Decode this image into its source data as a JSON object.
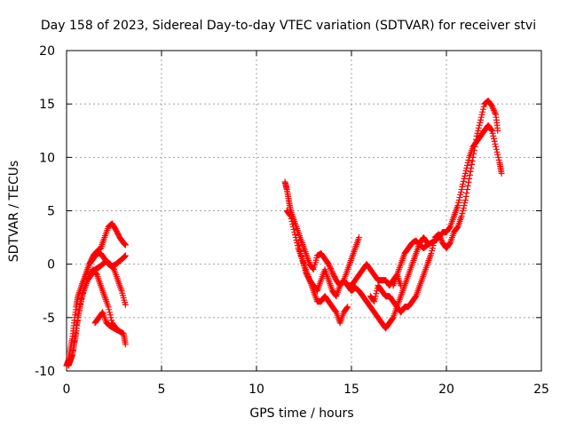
{
  "chart_data": {
    "type": "scatter",
    "title": "Day 158 of 2023, Sidereal Day-to-day VTEC variation (SDTVAR) for receiver stvi",
    "xlabel": "GPS time / hours",
    "ylabel": "SDTVAR / TECUs",
    "xlim": [
      0,
      25
    ],
    "ylim": [
      -10,
      20
    ],
    "xticks": [
      "0",
      "5",
      "10",
      "15",
      "20",
      "25"
    ],
    "yticks": [
      "-10",
      "-5",
      "0",
      "5",
      "10",
      "15",
      "20"
    ],
    "grid": true,
    "legend": "none",
    "marker": "+",
    "color": "#ff0000",
    "series": [
      {
        "values": [
          [
            0.0,
            -9.5
          ],
          [
            0.1,
            -9.0
          ],
          [
            0.2,
            -8.0
          ],
          [
            0.3,
            -7.0
          ],
          [
            0.4,
            -5.5
          ],
          [
            0.5,
            -4.0
          ],
          [
            0.6,
            -3.0
          ],
          [
            0.8,
            -2.0
          ],
          [
            1.0,
            -1.0
          ],
          [
            1.2,
            0.0
          ],
          [
            1.4,
            0.8
          ],
          [
            1.6,
            1.2
          ],
          [
            1.8,
            1.5
          ],
          [
            2.0,
            2.5
          ],
          [
            2.2,
            3.5
          ],
          [
            2.4,
            3.8
          ],
          [
            2.6,
            3.2
          ],
          [
            2.8,
            2.5
          ],
          [
            3.0,
            2.0
          ],
          [
            3.1,
            1.8
          ]
        ]
      },
      {
        "values": [
          [
            0.1,
            -9.5
          ],
          [
            0.2,
            -9.0
          ],
          [
            0.3,
            -8.5
          ],
          [
            0.4,
            -7.5
          ],
          [
            0.5,
            -6.5
          ],
          [
            0.6,
            -5.0
          ],
          [
            0.7,
            -4.0
          ],
          [
            0.8,
            -3.0
          ],
          [
            1.0,
            -2.0
          ],
          [
            1.2,
            -1.0
          ],
          [
            1.4,
            -0.5
          ],
          [
            1.6,
            -1.0
          ],
          [
            1.8,
            -2.0
          ],
          [
            2.0,
            -3.0
          ],
          [
            2.2,
            -4.0
          ],
          [
            2.4,
            -5.5
          ],
          [
            2.6,
            -6.0
          ],
          [
            2.8,
            -6.3
          ],
          [
            3.0,
            -6.5
          ],
          [
            3.1,
            -7.5
          ]
        ]
      },
      {
        "values": [
          [
            0.3,
            -8.5
          ],
          [
            0.5,
            -6.0
          ],
          [
            0.7,
            -4.0
          ],
          [
            0.9,
            -2.5
          ],
          [
            1.1,
            -1.5
          ],
          [
            1.3,
            -1.0
          ],
          [
            1.5,
            -0.5
          ],
          [
            1.7,
            -0.3
          ],
          [
            1.9,
            0.0
          ],
          [
            2.1,
            0.3
          ],
          [
            2.3,
            0.0
          ],
          [
            2.5,
            -0.5
          ],
          [
            2.7,
            -1.5
          ],
          [
            2.9,
            -2.5
          ],
          [
            3.1,
            -3.8
          ]
        ]
      },
      {
        "values": [
          [
            0.8,
            -2.0
          ],
          [
            1.0,
            -1.0
          ],
          [
            1.2,
            0.0
          ],
          [
            1.4,
            0.5
          ],
          [
            1.6,
            1.0
          ],
          [
            1.8,
            1.0
          ],
          [
            2.0,
            0.5
          ],
          [
            2.2,
            0.0
          ],
          [
            2.4,
            -0.2
          ],
          [
            2.6,
            0.0
          ],
          [
            2.8,
            0.3
          ],
          [
            3.0,
            0.6
          ],
          [
            3.1,
            0.8
          ]
        ]
      },
      {
        "values": [
          [
            1.5,
            -5.5
          ],
          [
            1.7,
            -5.0
          ],
          [
            1.9,
            -4.5
          ],
          [
            2.1,
            -5.5
          ],
          [
            2.3,
            -5.8
          ],
          [
            2.5,
            -6.0
          ],
          [
            2.7,
            -6.2
          ]
        ]
      },
      {
        "values": [
          [
            11.5,
            7.7
          ],
          [
            11.6,
            7.0
          ],
          [
            11.7,
            6.0
          ],
          [
            11.8,
            5.0
          ],
          [
            12.0,
            4.0
          ],
          [
            12.2,
            3.0
          ],
          [
            12.4,
            2.0
          ],
          [
            12.6,
            1.0
          ],
          [
            12.8,
            0.0
          ],
          [
            13.0,
            -0.5
          ],
          [
            13.2,
            0.8
          ],
          [
            13.4,
            1.0
          ],
          [
            13.6,
            0.5
          ],
          [
            13.8,
            0.0
          ],
          [
            14.0,
            -0.8
          ],
          [
            14.2,
            -1.5
          ],
          [
            14.4,
            -2.0
          ],
          [
            14.6,
            -1.5
          ],
          [
            14.8,
            -0.5
          ],
          [
            15.0,
            0.5
          ],
          [
            15.2,
            1.5
          ],
          [
            15.4,
            2.5
          ]
        ]
      },
      {
        "values": [
          [
            11.6,
            5.0
          ],
          [
            11.8,
            4.5
          ],
          [
            12.0,
            3.0
          ],
          [
            12.2,
            1.5
          ],
          [
            12.4,
            0.5
          ],
          [
            12.6,
            -0.5
          ],
          [
            12.8,
            -1.5
          ],
          [
            13.0,
            -2.5
          ],
          [
            13.2,
            -3.5
          ],
          [
            13.4,
            -3.5
          ],
          [
            13.6,
            -3.0
          ],
          [
            13.8,
            -3.5
          ],
          [
            14.0,
            -4.0
          ],
          [
            14.2,
            -4.5
          ],
          [
            14.4,
            -5.5
          ],
          [
            14.6,
            -4.5
          ],
          [
            14.8,
            -4.0
          ]
        ]
      },
      {
        "values": [
          [
            12.2,
            2.0
          ],
          [
            12.4,
            0.5
          ],
          [
            12.6,
            -0.8
          ],
          [
            12.8,
            -1.5
          ],
          [
            13.0,
            -2.0
          ],
          [
            13.2,
            -2.5
          ],
          [
            13.4,
            -1.5
          ],
          [
            13.6,
            -0.5
          ],
          [
            13.8,
            -1.5
          ],
          [
            14.0,
            -2.5
          ],
          [
            14.2,
            -3.0
          ],
          [
            14.4,
            -2.0
          ],
          [
            14.6,
            -1.5
          ],
          [
            14.8,
            -2.0
          ],
          [
            15.0,
            -2.0
          ],
          [
            15.2,
            -1.5
          ],
          [
            15.4,
            -1.0
          ],
          [
            15.6,
            -0.5
          ],
          [
            15.8,
            0.0
          ],
          [
            16.0,
            -0.5
          ],
          [
            16.2,
            -1.0
          ],
          [
            16.4,
            -1.5
          ],
          [
            16.6,
            -1.5
          ],
          [
            16.8,
            -1.5
          ],
          [
            17.0,
            -2.0
          ],
          [
            17.2,
            -1.5
          ],
          [
            17.4,
            -1.0
          ],
          [
            17.6,
            -2.0
          ]
        ]
      },
      {
        "values": [
          [
            14.8,
            -2.0
          ],
          [
            15.0,
            -2.5
          ],
          [
            15.2,
            -2.2
          ],
          [
            15.4,
            -2.5
          ],
          [
            15.6,
            -3.0
          ],
          [
            15.8,
            -3.5
          ],
          [
            16.0,
            -4.0
          ],
          [
            16.2,
            -4.5
          ],
          [
            16.4,
            -5.0
          ],
          [
            16.6,
            -5.5
          ],
          [
            16.8,
            -6.0
          ],
          [
            17.0,
            -5.5
          ],
          [
            17.2,
            -5.0
          ],
          [
            17.4,
            -4.0
          ],
          [
            17.6,
            -3.0
          ],
          [
            17.8,
            -2.0
          ],
          [
            18.0,
            -1.0
          ],
          [
            18.2,
            0.0
          ],
          [
            18.4,
            1.0
          ],
          [
            18.6,
            2.0
          ],
          [
            18.8,
            2.5
          ],
          [
            19.0,
            2.0
          ]
        ]
      },
      {
        "values": [
          [
            16.0,
            -3.0
          ],
          [
            16.2,
            -3.5
          ],
          [
            16.4,
            -2.0
          ],
          [
            16.6,
            -2.5
          ],
          [
            16.8,
            -3.0
          ],
          [
            17.0,
            -3.0
          ],
          [
            17.2,
            -3.5
          ],
          [
            17.4,
            -4.0
          ],
          [
            17.6,
            -4.5
          ],
          [
            17.8,
            -4.0
          ],
          [
            18.0,
            -4.0
          ],
          [
            18.2,
            -3.5
          ],
          [
            18.4,
            -3.0
          ],
          [
            18.6,
            -2.0
          ],
          [
            18.8,
            -1.0
          ],
          [
            19.0,
            0.0
          ],
          [
            19.2,
            1.0
          ],
          [
            19.4,
            2.5
          ],
          [
            19.6,
            2.8
          ],
          [
            19.8,
            2.0
          ],
          [
            20.0,
            1.5
          ],
          [
            20.2,
            2.0
          ],
          [
            20.4,
            3.0
          ],
          [
            20.6,
            3.5
          ],
          [
            20.8,
            4.5
          ],
          [
            21.0,
            6.0
          ],
          [
            21.2,
            8.0
          ],
          [
            21.4,
            10.0
          ],
          [
            21.6,
            12.0
          ],
          [
            21.8,
            13.5
          ],
          [
            22.0,
            15.0
          ],
          [
            22.2,
            15.3
          ],
          [
            22.4,
            14.8
          ],
          [
            22.6,
            14.0
          ],
          [
            22.7,
            12.5
          ]
        ]
      },
      {
        "values": [
          [
            17.2,
            -2.0
          ],
          [
            17.4,
            -1.0
          ],
          [
            17.6,
            0.0
          ],
          [
            17.8,
            1.0
          ],
          [
            18.0,
            1.5
          ],
          [
            18.2,
            2.0
          ],
          [
            18.4,
            2.2
          ],
          [
            18.6,
            1.8
          ],
          [
            18.8,
            1.5
          ],
          [
            19.0,
            1.8
          ],
          [
            19.2,
            2.0
          ],
          [
            19.4,
            2.2
          ],
          [
            19.6,
            2.5
          ],
          [
            19.8,
            3.0
          ],
          [
            20.0,
            3.0
          ],
          [
            20.2,
            3.5
          ],
          [
            20.4,
            4.5
          ],
          [
            20.6,
            5.5
          ],
          [
            20.8,
            7.0
          ],
          [
            21.0,
            8.5
          ],
          [
            21.2,
            10.0
          ],
          [
            21.4,
            11.0
          ],
          [
            21.6,
            11.5
          ],
          [
            21.8,
            12.0
          ],
          [
            22.0,
            12.5
          ],
          [
            22.2,
            13.0
          ],
          [
            22.4,
            12.5
          ],
          [
            22.6,
            11.0
          ],
          [
            22.8,
            9.5
          ],
          [
            22.9,
            8.5
          ]
        ]
      }
    ]
  }
}
